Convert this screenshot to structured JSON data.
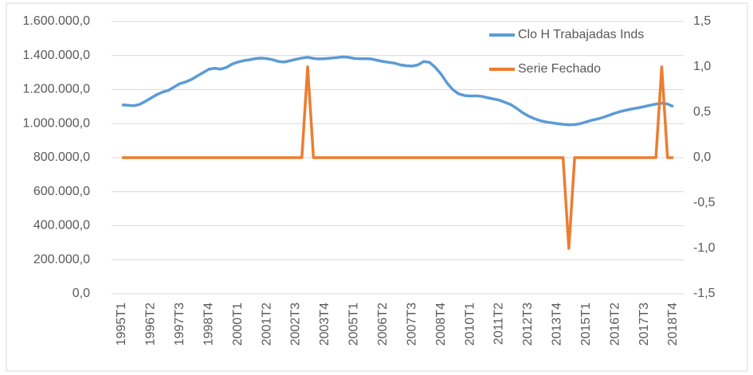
{
  "chart_data": {
    "type": "line",
    "categories": [
      "1995T1",
      null,
      null,
      null,
      null,
      "1996T2",
      null,
      null,
      null,
      null,
      "1997T3",
      null,
      null,
      null,
      null,
      "1998T4",
      null,
      null,
      null,
      null,
      "2000T1",
      null,
      null,
      null,
      null,
      "2001T2",
      null,
      null,
      null,
      null,
      "2002T3",
      null,
      null,
      null,
      null,
      "2003T4",
      null,
      null,
      null,
      null,
      "2005T1",
      null,
      null,
      null,
      null,
      "2006T2",
      null,
      null,
      null,
      null,
      "2007T3",
      null,
      null,
      null,
      null,
      "2008T4",
      null,
      null,
      null,
      null,
      "2010T1",
      null,
      null,
      null,
      null,
      "2011T2",
      null,
      null,
      null,
      null,
      "2012T3",
      null,
      null,
      null,
      null,
      "2013T4",
      null,
      null,
      null,
      null,
      "2015T1",
      null,
      null,
      null,
      null,
      "2016T2",
      null,
      null,
      null,
      null,
      "2017T3",
      null,
      null,
      null,
      null,
      "2018T4"
    ],
    "series": [
      {
        "name": "Clo H Trabajadas Inds",
        "color": "#5b9bd5",
        "values": [
          1110000,
          1108000,
          1105000,
          1112000,
          1130000,
          1150000,
          1170000,
          1185000,
          1195000,
          1215000,
          1235000,
          1245000,
          1260000,
          1280000,
          1300000,
          1320000,
          1325000,
          1320000,
          1330000,
          1350000,
          1362000,
          1370000,
          1375000,
          1382000,
          1385000,
          1382000,
          1375000,
          1365000,
          1362000,
          1370000,
          1378000,
          1385000,
          1390000,
          1383000,
          1380000,
          1382000,
          1385000,
          1388000,
          1392000,
          1390000,
          1383000,
          1381000,
          1381000,
          1380000,
          1372000,
          1365000,
          1360000,
          1355000,
          1345000,
          1340000,
          1338000,
          1345000,
          1365000,
          1360000,
          1330000,
          1290000,
          1240000,
          1200000,
          1175000,
          1165000,
          1162000,
          1163000,
          1160000,
          1152000,
          1145000,
          1138000,
          1125000,
          1112000,
          1090000,
          1065000,
          1045000,
          1030000,
          1018000,
          1010000,
          1005000,
          1000000,
          996000,
          993000,
          994000,
          1000000,
          1010000,
          1020000,
          1028000,
          1038000,
          1050000,
          1062000,
          1072000,
          1080000,
          1087000,
          1093000,
          1100000,
          1108000,
          1115000,
          1120000,
          1115000,
          1100000
        ]
      },
      {
        "name": "Serie Fechado",
        "color": "#ed7d31",
        "axis": "y2",
        "values": [
          0,
          0,
          0,
          0,
          0,
          0,
          0,
          0,
          0,
          0,
          0,
          0,
          0,
          0,
          0,
          0,
          0,
          0,
          0,
          0,
          0,
          0,
          0,
          0,
          0,
          0,
          0,
          0,
          0,
          0,
          0,
          0,
          1,
          0,
          0,
          0,
          0,
          0,
          0,
          0,
          0,
          0,
          0,
          0,
          0,
          0,
          0,
          0,
          0,
          0,
          0,
          0,
          0,
          0,
          0,
          0,
          0,
          0,
          0,
          0,
          0,
          0,
          0,
          0,
          0,
          0,
          0,
          0,
          0,
          0,
          0,
          0,
          0,
          0,
          0,
          0,
          0,
          -1,
          0,
          0,
          0,
          0,
          0,
          0,
          0,
          0,
          0,
          0,
          0,
          0,
          0,
          0,
          0,
          1,
          0,
          0
        ]
      }
    ],
    "ylim": [
      0,
      1600000
    ],
    "yticks": [
      {
        "value": 0,
        "label": "0,0"
      },
      {
        "value": 200000,
        "label": "200.000,0"
      },
      {
        "value": 400000,
        "label": "400.000,0"
      },
      {
        "value": 600000,
        "label": "600.000,0"
      },
      {
        "value": 800000,
        "label": "800.000,0"
      },
      {
        "value": 1000000,
        "label": "1.000.000,0"
      },
      {
        "value": 1200000,
        "label": "1.200.000,0"
      },
      {
        "value": 1400000,
        "label": "1.400.000,0"
      },
      {
        "value": 1600000,
        "label": "1.600.000,0"
      }
    ],
    "y2lim": [
      -1.5,
      1.5
    ],
    "y2ticks": [
      {
        "value": -1.5,
        "label": "-1,5"
      },
      {
        "value": -1,
        "label": "-1,0"
      },
      {
        "value": -0.5,
        "label": "-0,5"
      },
      {
        "value": 0,
        "label": "0,0"
      },
      {
        "value": 0.5,
        "label": "0,5"
      },
      {
        "value": 1,
        "label": "1,0"
      },
      {
        "value": 1.5,
        "label": "1,5"
      }
    ],
    "grid": true,
    "legend": "top-right"
  }
}
